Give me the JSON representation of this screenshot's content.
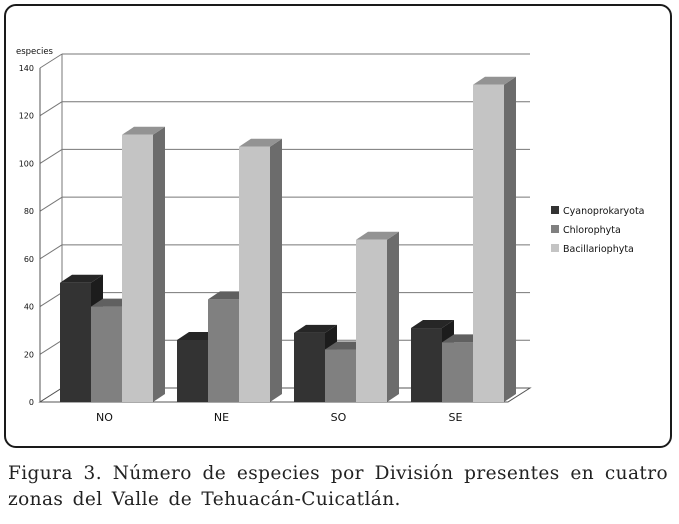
{
  "chart_data": {
    "type": "bar",
    "categories": [
      "NO",
      "NE",
      "SO",
      "SE"
    ],
    "series": [
      {
        "name": "Cyanoprokaryota",
        "values": [
          50,
          26,
          29,
          31
        ],
        "color": "#333333"
      },
      {
        "name": "Chlorophyta",
        "values": [
          40,
          43,
          22,
          25
        ],
        "color": "#808080"
      },
      {
        "name": "Bacillariophyta",
        "values": [
          112,
          107,
          68,
          133
        ],
        "color": "#c4c4c4"
      }
    ],
    "ylabel": "especies",
    "yticks": [
      0,
      20,
      40,
      60,
      80,
      100,
      120,
      140
    ],
    "ylim": [
      0,
      140
    ],
    "grid": true,
    "three_d": true,
    "legend_position": "right"
  },
  "caption": "Figura 3. Número de especies por División presentes en cuatro zonas del Valle de Tehuacán-Cuicatlán."
}
